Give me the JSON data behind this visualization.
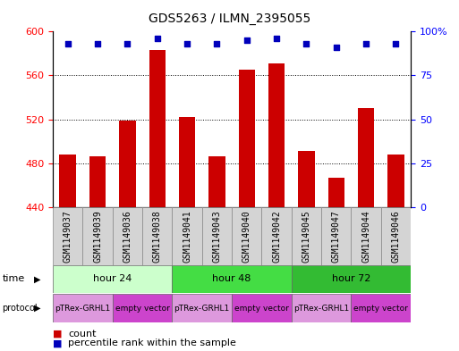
{
  "title": "GDS5263 / ILMN_2395055",
  "samples": [
    "GSM1149037",
    "GSM1149039",
    "GSM1149036",
    "GSM1149038",
    "GSM1149041",
    "GSM1149043",
    "GSM1149040",
    "GSM1149042",
    "GSM1149045",
    "GSM1149047",
    "GSM1149044",
    "GSM1149046"
  ],
  "counts": [
    488,
    486,
    519,
    583,
    522,
    486,
    565,
    571,
    491,
    467,
    530,
    488
  ],
  "percentile_ranks": [
    93,
    93,
    93,
    96,
    93,
    93,
    95,
    96,
    93,
    91,
    93,
    93
  ],
  "ylim_left": [
    440,
    600
  ],
  "ylim_right": [
    0,
    100
  ],
  "yticks_left": [
    440,
    480,
    520,
    560,
    600
  ],
  "yticks_right": [
    0,
    25,
    50,
    75,
    100
  ],
  "bar_color": "#cc0000",
  "dot_color": "#0000bb",
  "time_colors": {
    "hour 24": "#ccffcc",
    "hour 48": "#44dd44",
    "hour 72": "#33bb33"
  },
  "prot_color_light": "#dd99dd",
  "prot_color_dark": "#cc44cc",
  "time_groups": [
    {
      "label": "hour 24",
      "start": 0,
      "end": 4
    },
    {
      "label": "hour 48",
      "start": 4,
      "end": 8
    },
    {
      "label": "hour 72",
      "start": 8,
      "end": 12
    }
  ],
  "protocol_groups": [
    {
      "label": "pTRex-GRHL1",
      "start": 0,
      "end": 2
    },
    {
      "label": "empty vector",
      "start": 2,
      "end": 4
    },
    {
      "label": "pTRex-GRHL1",
      "start": 4,
      "end": 6
    },
    {
      "label": "empty vector",
      "start": 6,
      "end": 8
    },
    {
      "label": "pTRex-GRHL1",
      "start": 8,
      "end": 10
    },
    {
      "label": "empty vector",
      "start": 10,
      "end": 12
    }
  ],
  "bar_width": 0.55,
  "title_fontsize": 10,
  "tick_fontsize": 7,
  "label_fontsize": 7,
  "row_label_fontsize": 8,
  "sample_box_color": "#d4d4d4"
}
